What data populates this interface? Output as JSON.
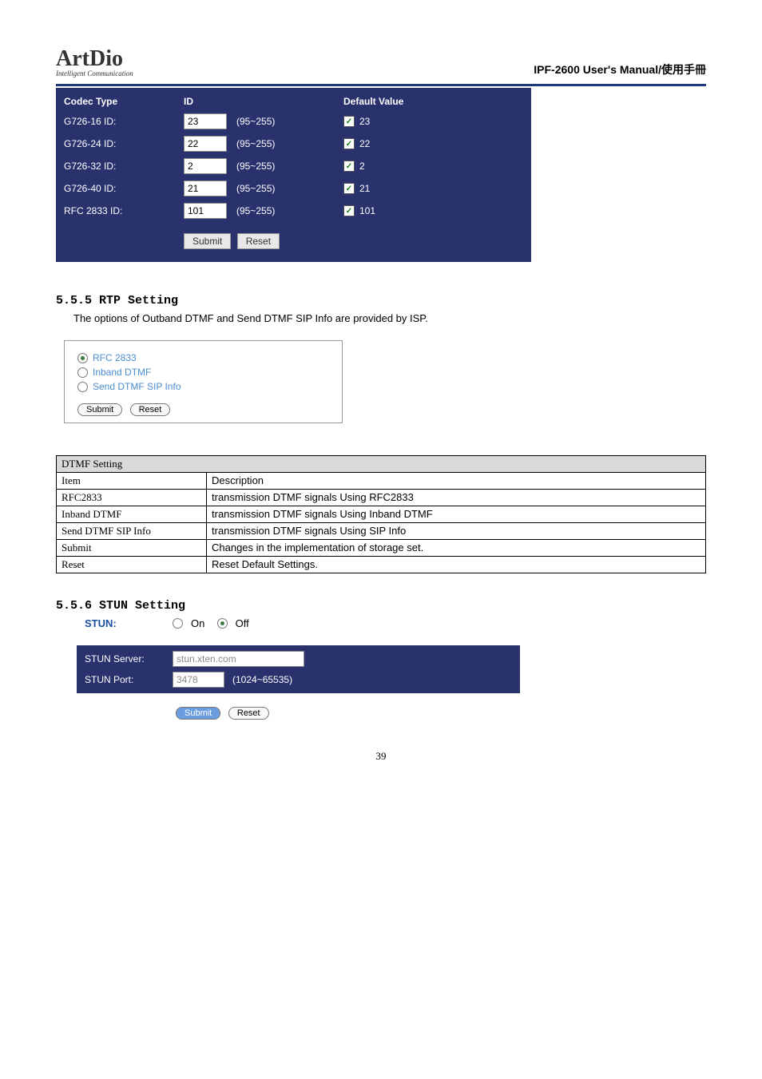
{
  "header": {
    "logo_main": "ArtDio",
    "logo_sub": "Intelligent Communication",
    "doc_title": "IPF-2600 User's Manual/使用手冊"
  },
  "codec": {
    "headers": {
      "type": "Codec Type",
      "id": "ID",
      "default": "Default Value"
    },
    "range": "(95~255)",
    "rows": [
      {
        "label": "G726-16 ID:",
        "id": "23",
        "checked": true,
        "default": "23"
      },
      {
        "label": "G726-24 ID:",
        "id": "22",
        "checked": true,
        "default": "22"
      },
      {
        "label": "G726-32 ID:",
        "id": "2",
        "checked": true,
        "default": "2"
      },
      {
        "label": "G726-40 ID:",
        "id": "21",
        "checked": true,
        "default": "21"
      },
      {
        "label": "RFC 2833 ID:",
        "id": "101",
        "checked": true,
        "default": "101"
      }
    ],
    "submit": "Submit",
    "reset": "Reset"
  },
  "rtp": {
    "title": "5.5.5 RTP Setting",
    "desc": "The options of Outband DTMF and Send DTMF SIP Info are provided by ISP.",
    "options": [
      {
        "label": "RFC 2833",
        "selected": true
      },
      {
        "label": "Inband DTMF",
        "selected": false
      },
      {
        "label": "Send DTMF SIP Info",
        "selected": false
      }
    ],
    "submit": "Submit",
    "reset": "Reset"
  },
  "dtmf_table": {
    "title": "DTMF Setting",
    "headers": {
      "item": "Item",
      "desc": "Description"
    },
    "rows": [
      {
        "item": "RFC2833",
        "desc": "transmission DTMF signals Using RFC2833"
      },
      {
        "item": "Inband DTMF",
        "desc": "transmission DTMF signals Using Inband DTMF"
      },
      {
        "item": "Send DTMF SIP Info",
        "desc": "transmission DTMF signals Using SIP Info"
      },
      {
        "item": "Submit",
        "desc": "Changes in the implementation of storage set."
      },
      {
        "item": "Reset",
        "desc": "Reset Default Settings."
      }
    ]
  },
  "stun": {
    "title": "5.5.6 STUN Setting",
    "label": "STUN:",
    "on": "On",
    "off": "Off",
    "selected": "off",
    "server_label": "STUN Server:",
    "server_value": "stun.xten.com",
    "port_label": "STUN Port:",
    "port_value": "3478",
    "port_range": "(1024~65535)",
    "submit": "Submit",
    "reset": "Reset"
  },
  "page_number": "39"
}
